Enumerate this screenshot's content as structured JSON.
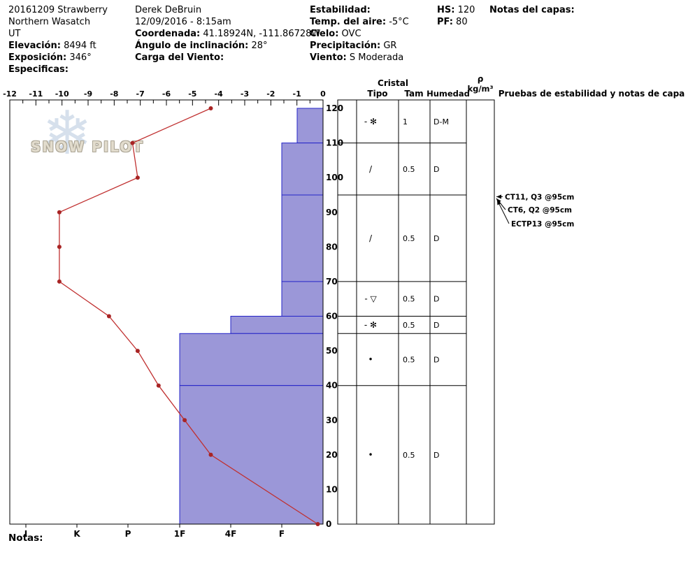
{
  "header": {
    "pit_name": "20161209 Strawberry",
    "region": "Northern Wasatch",
    "state": "UT",
    "elevation": {
      "label": "Elevación:",
      "value": "8494 ft"
    },
    "aspect": {
      "label": "Exposición:",
      "value": "346°"
    },
    "specifics": {
      "label": "Especificas:",
      "value": ""
    },
    "observer": "Derek DeBruin",
    "datetime": "12/09/2016 - 8:15am",
    "coordinates": {
      "label": "Coordenada:",
      "value": "41.18924N, -111.86728W"
    },
    "slope_angle": {
      "label": "Ángulo de inclinación:",
      "value": "28°"
    },
    "wind_loading": {
      "label": "Carga del Viento:",
      "value": ""
    },
    "stability": {
      "label": "Estabilidad:",
      "value": ""
    },
    "air_temp": {
      "label": "Temp. del aire:",
      "value": "-5°C"
    },
    "sky": {
      "label": "Cielo:",
      "value": "OVC"
    },
    "precipitation": {
      "label": "Precipitación:",
      "value": "GR"
    },
    "wind": {
      "label": "Viento:",
      "value": "S Moderada"
    },
    "hs": {
      "label": "HS:",
      "value": "120"
    },
    "pf": {
      "label": "PF:",
      "value": "80"
    },
    "layer_notes": {
      "label": "Notas del capas:",
      "value": ""
    }
  },
  "watermark": {
    "text": "SNOW PILOT",
    "snowflake": "❄"
  },
  "notes_label": "Notas:",
  "chart_data": {
    "type": "snow-profile",
    "colors": {
      "bar_fill": "#9b97d8",
      "bar_stroke": "#2424c8",
      "temp_line": "#c03030",
      "temp_point": "#a82424"
    },
    "temp_axis": {
      "min": -12,
      "max": 0,
      "tick_labels": [
        "-12",
        "-11",
        "-10",
        "-9",
        "-8",
        "-7",
        "-6",
        "-5",
        "-4",
        "-3",
        "-2",
        "-1",
        "0"
      ]
    },
    "depth_axis": {
      "min": 0,
      "max": 120,
      "tick_labels": [
        "0",
        "10",
        "20",
        "30",
        "40",
        "50",
        "60",
        "70",
        "80",
        "90",
        "100",
        "110",
        "120"
      ]
    },
    "hardness_axis": {
      "labels": [
        "I",
        "K",
        "P",
        "1F",
        "4F",
        "F"
      ]
    },
    "temperature_profile": {
      "points": [
        {
          "depth_cm": 120,
          "temp_c": -4.3
        },
        {
          "depth_cm": 110,
          "temp_c": -7.3
        },
        {
          "depth_cm": 100,
          "temp_c": -7.1
        },
        {
          "depth_cm": 90,
          "temp_c": -10.1
        },
        {
          "depth_cm": 80,
          "temp_c": -10.1
        },
        {
          "depth_cm": 70,
          "temp_c": -10.1
        },
        {
          "depth_cm": 60,
          "temp_c": -8.2
        },
        {
          "depth_cm": 50,
          "temp_c": -7.1
        },
        {
          "depth_cm": 40,
          "temp_c": -6.3
        },
        {
          "depth_cm": 30,
          "temp_c": -5.3
        },
        {
          "depth_cm": 20,
          "temp_c": -4.3
        },
        {
          "depth_cm": 0,
          "temp_c": -0.2
        }
      ]
    },
    "layers": [
      {
        "top_cm": 120,
        "bottom_cm": 110,
        "hardness": "F-",
        "grain_symbol": "- ✻",
        "grain_size": "1",
        "moisture": "D-M"
      },
      {
        "top_cm": 110,
        "bottom_cm": 95,
        "hardness": "F",
        "grain_symbol": "/",
        "grain_size": "0.5",
        "moisture": "D"
      },
      {
        "top_cm": 95,
        "bottom_cm": 70,
        "hardness": "F",
        "grain_symbol": "/",
        "grain_size": "0.5",
        "moisture": "D"
      },
      {
        "top_cm": 70,
        "bottom_cm": 60,
        "hardness": "F",
        "grain_symbol": "- ▽",
        "grain_size": "0.5",
        "moisture": "D"
      },
      {
        "top_cm": 60,
        "bottom_cm": 55,
        "hardness": "4F",
        "grain_symbol": "- ✻",
        "grain_size": "0.5",
        "moisture": "D"
      },
      {
        "top_cm": 55,
        "bottom_cm": 40,
        "hardness": "1F",
        "grain_symbol": "•",
        "grain_size": "0.5",
        "moisture": "D"
      },
      {
        "top_cm": 40,
        "bottom_cm": 0,
        "hardness": "1F",
        "grain_symbol": "•",
        "grain_size": "0.5",
        "moisture": "D"
      }
    ],
    "table_headers": {
      "group": "Cristal",
      "type": "Tipo",
      "size": "Tam",
      "moisture": "Humedad",
      "density": "ρ",
      "density_units": "kg/m³",
      "stability": "Pruebas de estabilidad y notas de capa"
    },
    "stability_tests": [
      {
        "label": "CT11, Q3 @95cm",
        "depth_cm": 95
      },
      {
        "label": "CT6, Q2 @95cm",
        "depth_cm": 95
      },
      {
        "label": "ECTP13 @95cm",
        "depth_cm": 95
      }
    ]
  }
}
